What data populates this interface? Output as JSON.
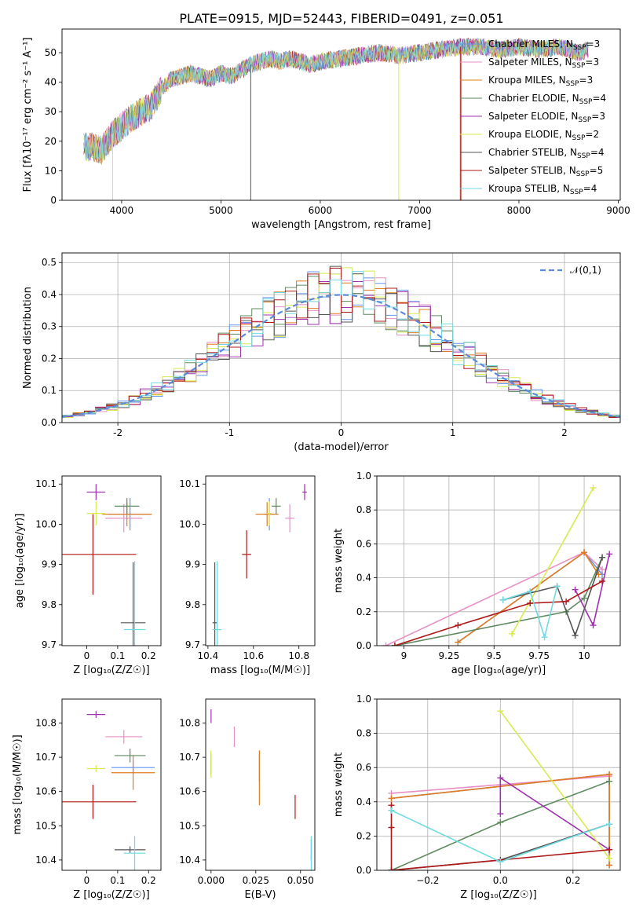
{
  "title": "PLATE=0915, MJD=52443, FIBERID=0491, z=0.051",
  "colors": {
    "Chabrier MILES": "#6495ed",
    "Salpeter MILES": "#e88fc4",
    "Kroupa MILES": "#e07b20",
    "Chabrier ELODIE": "#5f8a5f",
    "Salpeter ELODIE": "#a030b0",
    "Kroupa ELODIE": "#d8ea50",
    "Chabrier STELIB": "#555555",
    "Salpeter STELIB": "#b01818",
    "Kroupa STELIB": "#70dae0",
    "gaussian": "#5a8ad8"
  },
  "models": [
    {
      "key": "Chabrier MILES",
      "name": "Chabrier MILES",
      "nssp": "3"
    },
    {
      "key": "Salpeter MILES",
      "name": "Salpeter MILES",
      "nssp": "3"
    },
    {
      "key": "Kroupa MILES",
      "name": "Kroupa MILES",
      "nssp": "3"
    },
    {
      "key": "Chabrier ELODIE",
      "name": "Chabrier ELODIE",
      "nssp": "4"
    },
    {
      "key": "Salpeter ELODIE",
      "name": "Salpeter ELODIE",
      "nssp": "3"
    },
    {
      "key": "Kroupa ELODIE",
      "name": "Kroupa ELODIE",
      "nssp": "2"
    },
    {
      "key": "Chabrier STELIB",
      "name": "Chabrier STELIB",
      "nssp": "4"
    },
    {
      "key": "Salpeter STELIB",
      "name": "Salpeter STELIB",
      "nssp": "5"
    },
    {
      "key": "Kroupa STELIB",
      "name": "Kroupa STELIB",
      "nssp": "4"
    }
  ],
  "chart_data": [
    {
      "id": "spectrum",
      "type": "line",
      "xlabel": "wavelength [Angstrom, rest frame]",
      "ylabel": "Flux [fλ10⁻¹⁷ erg cm⁻² s⁻¹ A⁻¹]",
      "xlim": [
        3400,
        9020
      ],
      "ylim": [
        0,
        58
      ],
      "xticks": [
        4000,
        5000,
        6000,
        7000,
        8000,
        9000
      ],
      "yticks": [
        0,
        10,
        20,
        30,
        40,
        50
      ],
      "continuum": [
        [
          3600,
          18
        ],
        [
          3700,
          18
        ],
        [
          3800,
          17
        ],
        [
          3900,
          22
        ],
        [
          4000,
          25
        ],
        [
          4100,
          28
        ],
        [
          4200,
          30
        ],
        [
          4300,
          32
        ],
        [
          4400,
          38
        ],
        [
          4500,
          41
        ],
        [
          4600,
          42
        ],
        [
          4700,
          43
        ],
        [
          4800,
          42
        ],
        [
          4900,
          41
        ],
        [
          5000,
          43
        ],
        [
          5100,
          42
        ],
        [
          5200,
          44
        ],
        [
          5300,
          46
        ],
        [
          5400,
          47
        ],
        [
          5500,
          48
        ],
        [
          5600,
          47
        ],
        [
          5700,
          48
        ],
        [
          5800,
          47
        ],
        [
          5900,
          46
        ],
        [
          6000,
          47
        ],
        [
          6200,
          48
        ],
        [
          6400,
          49
        ],
        [
          6600,
          50
        ],
        [
          6800,
          49
        ],
        [
          7000,
          50
        ],
        [
          7200,
          51
        ],
        [
          7400,
          52
        ],
        [
          7600,
          52
        ],
        [
          7800,
          51
        ],
        [
          8000,
          52
        ],
        [
          8200,
          51
        ],
        [
          8400,
          52
        ],
        [
          8600,
          50
        ],
        [
          8700,
          51
        ]
      ]
    },
    {
      "id": "residuals",
      "type": "histogram",
      "xlabel": "(data-model)/error",
      "ylabel": "Normed distribution",
      "xlim": [
        -2.5,
        2.5
      ],
      "ylim": [
        0,
        0.53
      ],
      "xticks": [
        -2,
        -1,
        0,
        1,
        2
      ],
      "yticks": [
        0.0,
        0.1,
        0.2,
        0.3,
        0.4,
        0.5
      ],
      "legend": "𝒩(0,1)",
      "bin_width": 0.1,
      "bin_start": -2.5
    },
    {
      "id": "age-vs-z",
      "type": "errorbar",
      "xlabel": "Z [log₁₀(Z/Z☉)]",
      "ylabel": "age  [log₁₀(age/yr)]",
      "xlim": [
        -0.08,
        0.24
      ],
      "ylim": [
        9.698,
        10.12
      ],
      "xticks": [
        0.0,
        0.1,
        0.2
      ],
      "yticks": [
        9.7,
        9.8,
        9.9,
        10.0,
        10.1
      ],
      "points": [
        {
          "model": "Chabrier MILES",
          "x": 0.14,
          "y": 10.025,
          "ex": 0.07,
          "ey": 0.04
        },
        {
          "model": "Salpeter MILES",
          "x": 0.12,
          "y": 10.015,
          "ex": 0.06,
          "ey": 0.035
        },
        {
          "model": "Kroupa MILES",
          "x": 0.13,
          "y": 10.025,
          "ex": 0.08,
          "ey": 0.03
        },
        {
          "model": "Chabrier ELODIE",
          "x": 0.13,
          "y": 10.045,
          "ex": 0.04,
          "ey": 0.02
        },
        {
          "model": "Salpeter ELODIE",
          "x": 0.03,
          "y": 10.08,
          "ex": 0.03,
          "ey": 0.02
        },
        {
          "model": "Kroupa ELODIE",
          "x": 0.03,
          "y": 10.027,
          "ex": 0.03,
          "ey": 0.03
        },
        {
          "model": "Chabrier STELIB",
          "x": 0.15,
          "y": 9.755,
          "ex": 0.04,
          "ey": 0.15
        },
        {
          "model": "Salpeter STELIB",
          "x": 0.02,
          "y": 9.925,
          "ex": 0.14,
          "ey": 0.1
        },
        {
          "model": "Kroupa STELIB",
          "x": 0.155,
          "y": 9.738,
          "ex": 0.035,
          "ey": 0.17
        }
      ]
    },
    {
      "id": "age-vs-mass",
      "type": "errorbar",
      "xlabel": "mass [log₁₀(M/M☉)]",
      "ylabel": "",
      "xlim": [
        10.39,
        10.87
      ],
      "ylim": [
        9.698,
        10.12
      ],
      "xticks": [
        10.4,
        10.6,
        10.8
      ],
      "yticks": [
        9.7,
        9.8,
        9.9,
        10.0,
        10.1
      ],
      "points": [
        {
          "model": "Chabrier MILES",
          "x": 10.67,
          "y": 10.025,
          "ex": 0.02,
          "ey": 0.04
        },
        {
          "model": "Salpeter MILES",
          "x": 10.76,
          "y": 10.015,
          "ex": 0.02,
          "ey": 0.035
        },
        {
          "model": "Kroupa MILES",
          "x": 10.66,
          "y": 10.025,
          "ex": 0.05,
          "ey": 0.03
        },
        {
          "model": "Chabrier ELODIE",
          "x": 10.7,
          "y": 10.045,
          "ex": 0.02,
          "ey": 0.02
        },
        {
          "model": "Salpeter ELODIE",
          "x": 10.825,
          "y": 10.08,
          "ex": 0.01,
          "ey": 0.02
        },
        {
          "model": "Kroupa ELODIE",
          "x": 10.67,
          "y": 10.027,
          "ex": 0.01,
          "ey": 0.03
        },
        {
          "model": "Chabrier STELIB",
          "x": 10.43,
          "y": 9.755,
          "ex": 0.01,
          "ey": 0.15
        },
        {
          "model": "Salpeter STELIB",
          "x": 10.57,
          "y": 9.925,
          "ex": 0.02,
          "ey": 0.06
        },
        {
          "model": "Kroupa STELIB",
          "x": 10.44,
          "y": 9.738,
          "ex": 0.02,
          "ey": 0.17
        }
      ]
    },
    {
      "id": "weight-vs-age",
      "type": "line",
      "xlabel": "age  [log₁₀(age/yr)]",
      "ylabel": "mass weight",
      "xlim": [
        8.85,
        10.2
      ],
      "ylim": [
        0,
        1.0
      ],
      "xticks": [
        9.0,
        9.25,
        9.5,
        9.75,
        10.0
      ],
      "yticks": [
        0.0,
        0.2,
        0.4,
        0.6,
        0.8,
        1.0
      ],
      "series": [
        {
          "model": "Chabrier MILES",
          "x": [
            9.3,
            10.0,
            10.1
          ],
          "y": [
            0.02,
            0.55,
            0.42
          ]
        },
        {
          "model": "Salpeter MILES",
          "x": [
            8.9,
            10.0,
            10.1
          ],
          "y": [
            0.0,
            0.55,
            0.45
          ]
        },
        {
          "model": "Kroupa MILES",
          "x": [
            9.3,
            10.0,
            10.08
          ],
          "y": [
            0.02,
            0.55,
            0.42
          ]
        },
        {
          "model": "Chabrier ELODIE",
          "x": [
            8.95,
            9.9,
            10.0,
            10.1
          ],
          "y": [
            0.0,
            0.2,
            0.28,
            0.52
          ]
        },
        {
          "model": "Salpeter ELODIE",
          "x": [
            9.95,
            10.05,
            10.14
          ],
          "y": [
            0.33,
            0.12,
            0.54
          ]
        },
        {
          "model": "Kroupa ELODIE",
          "x": [
            9.6,
            10.05
          ],
          "y": [
            0.07,
            0.93
          ]
        },
        {
          "model": "Chabrier STELIB",
          "x": [
            9.55,
            9.85,
            9.95,
            10.1
          ],
          "y": [
            0.27,
            0.35,
            0.06,
            0.52
          ]
        },
        {
          "model": "Salpeter STELIB",
          "x": [
            8.95,
            9.3,
            9.7,
            9.9,
            10.1
          ],
          "y": [
            0.0,
            0.12,
            0.25,
            0.26,
            0.38
          ]
        },
        {
          "model": "Kroupa STELIB",
          "x": [
            9.55,
            9.7,
            9.78,
            9.85
          ],
          "y": [
            0.27,
            0.32,
            0.05,
            0.35
          ]
        }
      ]
    },
    {
      "id": "mass-vs-z",
      "type": "errorbar",
      "xlabel": "Z [log₁₀(Z/Z☉)]",
      "ylabel": "mass [log₁₀(M/M☉)]",
      "xlim": [
        -0.08,
        0.24
      ],
      "ylim": [
        10.37,
        10.87
      ],
      "xticks": [
        0.0,
        0.1,
        0.2
      ],
      "yticks": [
        10.4,
        10.5,
        10.6,
        10.7,
        10.8
      ],
      "points": [
        {
          "model": "Chabrier MILES",
          "x": 0.15,
          "y": 10.67,
          "ex": 0.07,
          "ey": 0.02
        },
        {
          "model": "Salpeter MILES",
          "x": 0.12,
          "y": 10.76,
          "ex": 0.06,
          "ey": 0.02
        },
        {
          "model": "Kroupa MILES",
          "x": 0.15,
          "y": 10.655,
          "ex": 0.07,
          "ey": 0.05
        },
        {
          "model": "Chabrier ELODIE",
          "x": 0.14,
          "y": 10.705,
          "ex": 0.05,
          "ey": 0.02
        },
        {
          "model": "Salpeter ELODIE",
          "x": 0.03,
          "y": 10.825,
          "ex": 0.03,
          "ey": 0.01
        },
        {
          "model": "Kroupa ELODIE",
          "x": 0.03,
          "y": 10.667,
          "ex": 0.03,
          "ey": 0.01
        },
        {
          "model": "Chabrier STELIB",
          "x": 0.14,
          "y": 10.43,
          "ex": 0.05,
          "ey": 0.01
        },
        {
          "model": "Salpeter STELIB",
          "x": 0.02,
          "y": 10.57,
          "ex": 0.14,
          "ey": 0.05
        },
        {
          "model": "Kroupa STELIB",
          "x": 0.155,
          "y": 10.42,
          "ex": 0.035,
          "ey": 0.05
        }
      ]
    },
    {
      "id": "mass-vs-ebv",
      "type": "errorbar",
      "xlabel": "E(B-V)",
      "ylabel": "",
      "xlim": [
        -0.003,
        0.058
      ],
      "ylim": [
        10.37,
        10.87
      ],
      "xticks": [
        0.0,
        0.025,
        0.05
      ],
      "xticklabels": [
        "0.000",
        "0.025",
        "0.050"
      ],
      "yticks": [
        10.4,
        10.5,
        10.6,
        10.7,
        10.8
      ],
      "points": [
        {
          "model": "Chabrier MILES",
          "x": 0.027,
          "y": 10.67,
          "ex": 0,
          "ey": 0.04
        },
        {
          "model": "Salpeter MILES",
          "x": 0.013,
          "y": 10.76,
          "ex": 0,
          "ey": 0.03
        },
        {
          "model": "Kroupa MILES",
          "x": 0.027,
          "y": 10.64,
          "ex": 0,
          "ey": 0.08
        },
        {
          "model": "Chabrier ELODIE",
          "x": 0.0,
          "y": 10.68,
          "ex": 0,
          "ey": 0.03
        },
        {
          "model": "Salpeter ELODIE",
          "x": 0.0,
          "y": 10.82,
          "ex": 0,
          "ey": 0.02
        },
        {
          "model": "Kroupa ELODIE",
          "x": 0.0,
          "y": 10.68,
          "ex": 0,
          "ey": 0.04
        },
        {
          "model": "Chabrier STELIB",
          "x": 0.056,
          "y": 10.43,
          "ex": 0,
          "ey": 0.03
        },
        {
          "model": "Salpeter STELIB",
          "x": 0.047,
          "y": 10.555,
          "ex": 0,
          "ey": 0.035
        },
        {
          "model": "Kroupa STELIB",
          "x": 0.056,
          "y": 10.42,
          "ex": 0,
          "ey": 0.05
        }
      ]
    },
    {
      "id": "weight-vs-z",
      "type": "line",
      "xlabel": "Z [log₁₀(Z/Z☉)]",
      "ylabel": "mass weight",
      "xlim": [
        -0.34,
        0.33
      ],
      "ylim": [
        0,
        1.0
      ],
      "xticks": [
        -0.2,
        0.0,
        0.2
      ],
      "xticklabels": [
        "−0.2",
        "0.0",
        "0.2"
      ],
      "yticks": [
        0.0,
        0.2,
        0.4,
        0.6,
        0.8,
        1.0
      ],
      "series": [
        {
          "model": "Chabrier MILES",
          "x": [
            -0.3,
            0.3,
            0.3
          ],
          "y": [
            0.42,
            0.56,
            0.03
          ]
        },
        {
          "model": "Salpeter MILES",
          "x": [
            -0.3,
            0.3
          ],
          "y": [
            0.45,
            0.55
          ]
        },
        {
          "model": "Kroupa MILES",
          "x": [
            -0.3,
            0.3,
            0.3
          ],
          "y": [
            0.42,
            0.56,
            0.03
          ]
        },
        {
          "model": "Chabrier ELODIE",
          "x": [
            -0.3,
            0.0,
            0.3
          ],
          "y": [
            0.0,
            0.28,
            0.52
          ]
        },
        {
          "model": "Salpeter ELODIE",
          "x": [
            0.0,
            0.0,
            0.3
          ],
          "y": [
            0.33,
            0.54,
            0.12
          ]
        },
        {
          "model": "Kroupa ELODIE",
          "x": [
            0.0,
            0.3
          ],
          "y": [
            0.93,
            0.07
          ]
        },
        {
          "model": "Chabrier STELIB",
          "x": [
            -0.3,
            0.0,
            0.3
          ],
          "y": [
            0.0,
            0.06,
            0.27
          ]
        },
        {
          "model": "Salpeter STELIB",
          "x": [
            -0.3,
            -0.3,
            -0.3,
            0.3
          ],
          "y": [
            0.38,
            0.25,
            0.0,
            0.12
          ]
        },
        {
          "model": "Kroupa STELIB",
          "x": [
            -0.3,
            0.0,
            0.3
          ],
          "y": [
            0.35,
            0.05,
            0.27
          ]
        }
      ]
    }
  ]
}
